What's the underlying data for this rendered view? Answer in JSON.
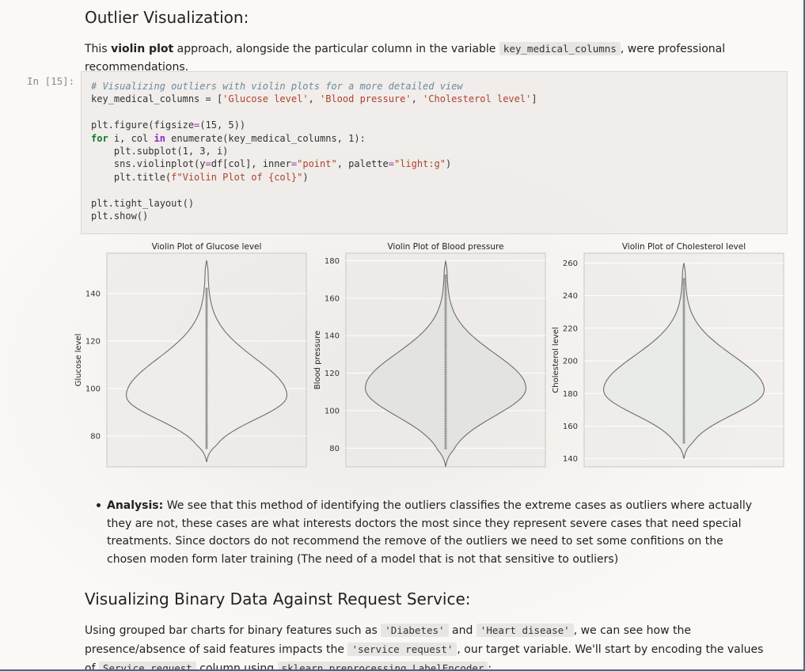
{
  "section1": {
    "heading": "Outlier Visualization:",
    "intro_pre": "This ",
    "intro_bold": "violin plot",
    "intro_mid": " approach, alongside the particular column in the variable ",
    "intro_code": "key_medical_columns",
    "intro_post": ", were professional recommendations."
  },
  "cell": {
    "prompt": "In [15]:",
    "code": {
      "l1_comment": "# Visualizing outliers with violin plots for a more detailed view",
      "l2_a": "key_medical_columns = [",
      "l2_s1": "'Glucose level'",
      "l2_c1": ", ",
      "l2_s2": "'Blood pressure'",
      "l2_c2": ", ",
      "l2_s3": "'Cholesterol level'",
      "l2_b": "]",
      "l4_a": "plt.figure(figsize",
      "l4_op": "=",
      "l4_b": "(15, 5))",
      "l5_kw": "for",
      "l5_a": " i, col ",
      "l5_in": "in",
      "l5_b": " enumerate(key_medical_columns, 1):",
      "l6": "    plt.subplot(1, 3, i)",
      "l7_a": "    sns.violinplot(y",
      "l7_op1": "=",
      "l7_b": "df[col], inner",
      "l7_op2": "=",
      "l7_s1": "\"point\"",
      "l7_c": ", palette",
      "l7_op3": "=",
      "l7_s2": "\"light:g\"",
      "l7_d": ")",
      "l8_a": "    plt.title(",
      "l8_s": "f\"Violin Plot of {col}\"",
      "l8_b": ")",
      "l10": "plt.tight_layout()",
      "l11": "plt.show()"
    }
  },
  "chart_data": [
    {
      "type": "violin",
      "title": "Violin Plot of Glucose level",
      "ylabel": "Glucose level",
      "ylim": [
        67,
        157
      ],
      "yticks": [
        80,
        100,
        120,
        140
      ],
      "range": [
        69,
        154
      ],
      "max_density_at": 97,
      "points_range": [
        75,
        142
      ],
      "fill": "#efedea"
    },
    {
      "type": "violin",
      "title": "Violin Plot of Blood pressure",
      "ylabel": "Blood pressure",
      "ylim": [
        70,
        184
      ],
      "yticks": [
        80,
        100,
        120,
        140,
        160,
        180
      ],
      "range": [
        70,
        180
      ],
      "max_density_at": 112,
      "points_range": [
        80,
        172
      ],
      "fill": "#e3e4e2"
    },
    {
      "type": "violin",
      "title": "Violin Plot of Cholesterol level",
      "ylabel": "Cholesterol level",
      "ylim": [
        135,
        266
      ],
      "yticks": [
        140,
        160,
        180,
        200,
        220,
        240,
        260
      ],
      "range": [
        140,
        260
      ],
      "max_density_at": 182,
      "points_range": [
        150,
        250
      ],
      "fill": "#e9ebe8"
    }
  ],
  "analysis": {
    "label": "Analysis:",
    "text": " We see that this method of identifying the outliers classifies the extreme cases as outliers where actually they are not, these cases are what interests doctors the most since they represent severe cases that need special treatments. Since doctors do not recommend the remove of the outliers we need to set some confitions on the chosen moden form later training (The need of a model that is not that sensitive to outliers)"
  },
  "section2": {
    "heading": "Visualizing Binary Data Against Request Service:",
    "p_1": "Using grouped bar charts for binary features such as ",
    "code_1": "'Diabetes'",
    "p_2": " and ",
    "code_2": "'Heart disease'",
    "p_3": ", we can see how the presence/absence of said features impacts the ",
    "code_3": "'service request'",
    "p_4": ", our target variable. We'll start by encoding the values of ",
    "code_4": "Service request",
    "p_5": " column using ",
    "code_5": "sklearn.preprocessing.LabelEncoder",
    "p_6": ":"
  }
}
